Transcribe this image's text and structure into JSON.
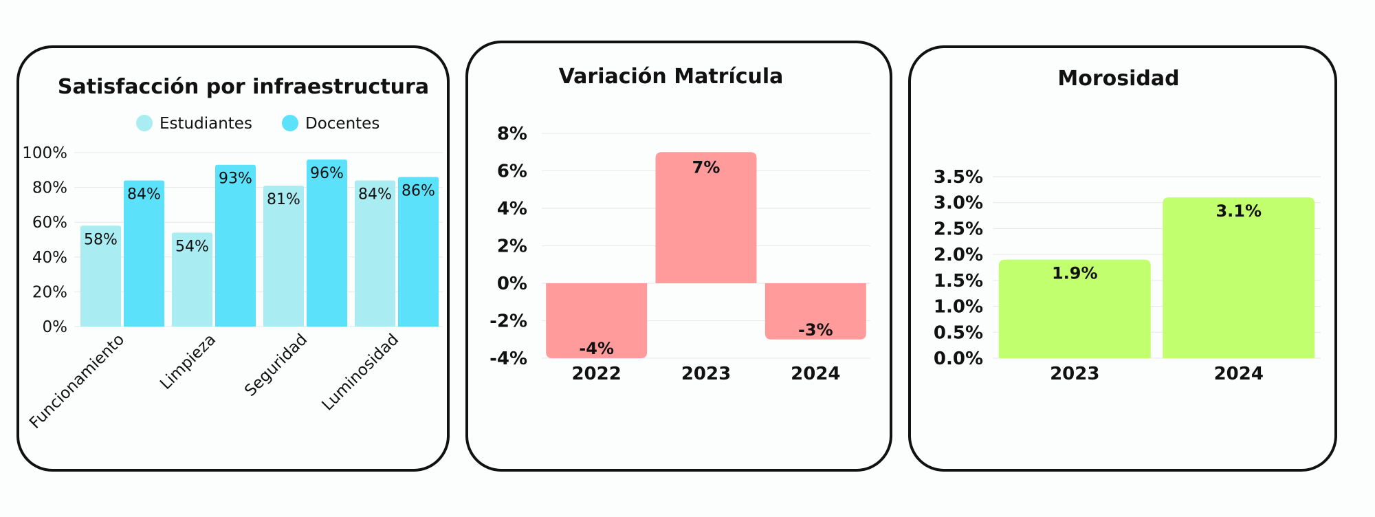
{
  "chart_data": [
    {
      "type": "bar",
      "title": "Satisfacción por infraestructura",
      "categories": [
        "Funcionamiento",
        "Limpieza",
        "Seguridad",
        "Luminosidad"
      ],
      "series": [
        {
          "name": "Estudiantes",
          "values": [
            58,
            54,
            81,
            84
          ],
          "labels": [
            "58%",
            "54%",
            "81%",
            "84%"
          ],
          "color": "#a9ecf1"
        },
        {
          "name": "Docentes",
          "values": [
            84,
            93,
            96,
            86
          ],
          "labels": [
            "84%",
            "93%",
            "96%",
            "86%"
          ],
          "color": "#5ce1fb"
        }
      ],
      "ylim": [
        0,
        100
      ],
      "yticks": [
        0,
        20,
        40,
        60,
        80,
        100
      ],
      "ytick_labels": [
        "0%",
        "20%",
        "40%",
        "60%",
        "80%",
        "100%"
      ],
      "legend": "top",
      "grid": true
    },
    {
      "type": "bar",
      "title": "Variación Matrícula",
      "categories": [
        "2022",
        "2023",
        "2024"
      ],
      "values": [
        -4,
        7,
        -3
      ],
      "labels": [
        "-4%",
        "7%",
        "-3%"
      ],
      "color": "#ff9b9b",
      "ylim": [
        -4,
        8
      ],
      "yticks": [
        -4,
        -2,
        0,
        2,
        4,
        6,
        8
      ],
      "ytick_labels": [
        "-4%",
        "-2%",
        "0%",
        "2%",
        "4%",
        "6%",
        "8%"
      ],
      "grid": true
    },
    {
      "type": "bar",
      "title": "Morosidad",
      "categories": [
        "2023",
        "2024"
      ],
      "values": [
        1.9,
        3.1
      ],
      "labels": [
        "1.9%",
        "3.1%"
      ],
      "color": "#c2ff6e",
      "ylim": [
        0,
        3.5
      ],
      "yticks": [
        0,
        0.5,
        1,
        1.5,
        2,
        2.5,
        3,
        3.5
      ],
      "ytick_labels": [
        "0.0%",
        "0.5%",
        "1.0%",
        "1.5%",
        "2.0%",
        "2.5%",
        "3.0%",
        "3.5%"
      ],
      "grid": true
    }
  ]
}
